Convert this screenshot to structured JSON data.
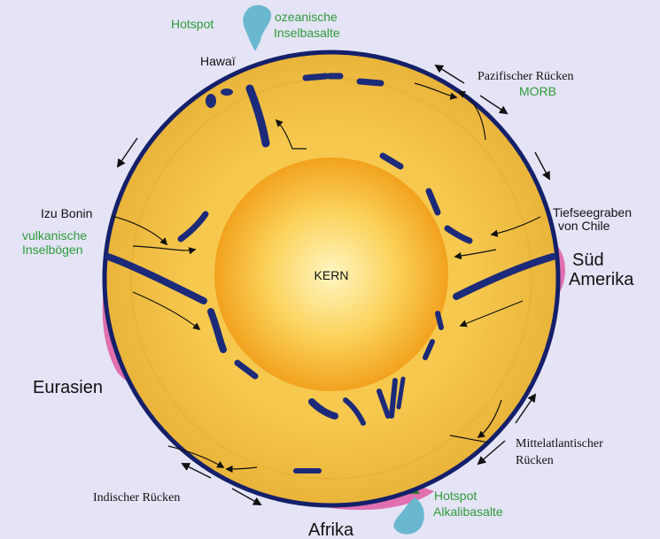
{
  "core": {
    "label": "KERN"
  },
  "labels": {
    "hotspot_top": "Hotspot",
    "ocean_basalt_1": "ozeanische",
    "ocean_basalt_2": "Inselbasalte",
    "hawaii": "Hawaï",
    "pacific_ridge": "Pazifischer Rücken",
    "morb": "MORB",
    "izu_bonin": "Izu Bonin",
    "volcanic_arc_1": "vulkanische",
    "volcanic_arc_2": "Inselbögen",
    "trench_1": "Tiefseegraben",
    "trench_2": "von Chile",
    "south_america_1": "Süd",
    "south_america_2": "Amerika",
    "eurasia": "Eurasien",
    "mid_atlantic_1": "Mittelatlantischer",
    "mid_atlantic_2": "Rücken",
    "indian_ridge": "Indischer Rücken",
    "hotspot_bottom": "Hotspot",
    "alkali_basalt": "Alkalibasalte",
    "africa": "Afrika"
  },
  "colors": {
    "background": "#e4e4f6",
    "mantle": "#f4c44a",
    "outer_mantle": "#e9b53c",
    "core_center": "#fff7c0",
    "core_edge": "#f0a520",
    "crust_line": "#14206a",
    "slab": "#1c2a7a",
    "continent": "#e070b0",
    "hotspot_plume": "#6ab8d0",
    "green_text": "#2f9a3a",
    "text": "#111111"
  }
}
